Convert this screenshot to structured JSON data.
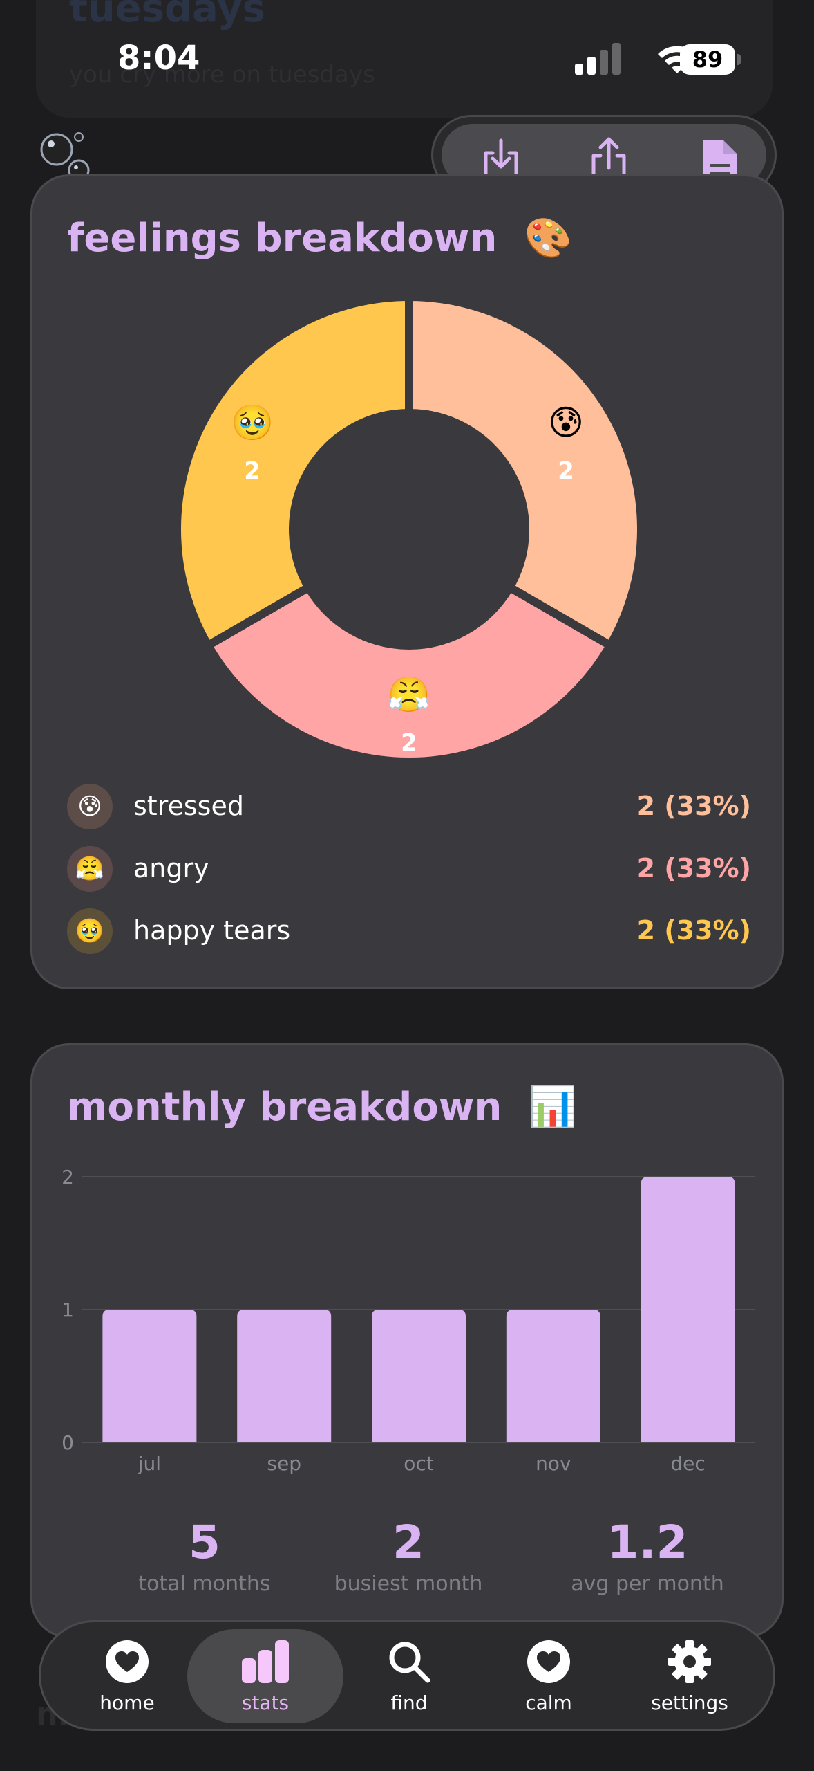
{
  "background_card": {
    "title": "tuesdays",
    "subtitle": "you cry more on tuesdays"
  },
  "status_bar": {
    "time": "8:04",
    "battery": "89"
  },
  "toolbar": {
    "download_icon": "download-icon",
    "share_icon": "share-icon",
    "document_icon": "document-icon"
  },
  "feelings": {
    "title": "feelings breakdown",
    "title_emoji": "🎨",
    "slices": [
      {
        "emoji": "😰",
        "count": "2",
        "color": "#ffbf9b"
      },
      {
        "emoji": "😤",
        "count": "2",
        "color": "#ffa5a5"
      },
      {
        "emoji": "🥹",
        "count": "2",
        "color": "#ffc74d"
      }
    ],
    "legend": [
      {
        "emoji": "😰",
        "label": "stressed",
        "value": "2 (33%)",
        "color": "#ffbf9b",
        "bg": "#5c4d49"
      },
      {
        "emoji": "😤",
        "label": "angry",
        "value": "2 (33%)",
        "color": "#ffa5a5",
        "bg": "#5c4a4b"
      },
      {
        "emoji": "🥹",
        "label": "happy tears",
        "value": "2 (33%)",
        "color": "#ffc74d",
        "bg": "#5c5138"
      }
    ]
  },
  "monthly": {
    "title": "monthly breakdown",
    "title_emoji": "📊",
    "stats": [
      {
        "value": "5",
        "label": "total months"
      },
      {
        "value": "2",
        "label": "busiest month"
      },
      {
        "value": "1.2",
        "label": "avg per month"
      }
    ]
  },
  "chart_data": [
    {
      "type": "pie",
      "categories": [
        "stressed",
        "angry",
        "happy tears"
      ],
      "values": [
        2,
        2,
        2
      ],
      "colors": [
        "#ffbf9b",
        "#ffa5a5",
        "#ffc74d"
      ]
    },
    {
      "type": "bar",
      "categories": [
        "jul",
        "sep",
        "oct",
        "nov",
        "dec"
      ],
      "values": [
        1,
        1,
        1,
        1,
        2
      ],
      "ylim": [
        0,
        2
      ],
      "yticks": [
        "0",
        "1",
        "2"
      ],
      "color": "#d9b3f2",
      "grid": true
    }
  ],
  "nav": {
    "items": [
      {
        "label": "home",
        "icon": "heart-icon"
      },
      {
        "label": "stats",
        "icon": "bar-chart-icon"
      },
      {
        "label": "find",
        "icon": "search-icon"
      },
      {
        "label": "calm",
        "icon": "heart-icon"
      },
      {
        "label": "settings",
        "icon": "gear-icon"
      }
    ],
    "active": "stats"
  }
}
